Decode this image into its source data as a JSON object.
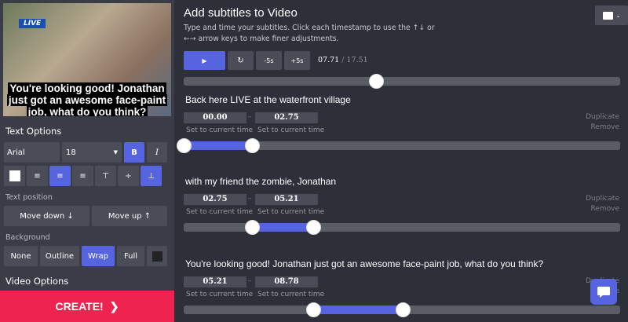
{
  "sidebar": {
    "video": {
      "live_badge": "LIVE",
      "caption": "You're looking good! Jonathan just got an awesome face-paint job, what do you think?"
    },
    "text_options_heading": "Text Options",
    "font": "Arial",
    "size": "18",
    "bold": "B",
    "italic": "I",
    "text_position_label": "Text position",
    "move_down": "Move down ↓",
    "move_up": "Move up ↑",
    "background_label": "Background",
    "bg_options": [
      "None",
      "Outline",
      "Wrap",
      "Full"
    ],
    "bg_selected": "Wrap",
    "video_options_heading": "Video Options",
    "create": "CREATE!"
  },
  "main": {
    "title": "Add subtitles to Video",
    "description": "Type and time your subtitles. Click each timestamp to use the ↑↓ or ←→ arrow keys to make finer adjustments.",
    "controls": {
      "minus5": "-5s",
      "plus5": "+5s",
      "current": "07.71",
      "separator": "/",
      "total": "17.51",
      "progress": 7.71,
      "duration": 17.51
    },
    "set_label": "Set to current time",
    "duplicate": "Duplicate",
    "remove": "Remove",
    "subtitles": [
      {
        "text": "Back here LIVE at the waterfront village",
        "start": "00.00",
        "end": "02.75"
      },
      {
        "text": "with my friend the zombie, Jonathan",
        "start": "02.75",
        "end": "05.21"
      },
      {
        "text": "You're looking good! Jonathan just got an awesome face-paint job, what do you think?",
        "start": "05.21",
        "end": "08.78"
      }
    ]
  },
  "colors": {
    "accent": "#5664e0",
    "create": "#ee2350",
    "background": "#2d2f39",
    "sidebar": "#3a3d47"
  }
}
